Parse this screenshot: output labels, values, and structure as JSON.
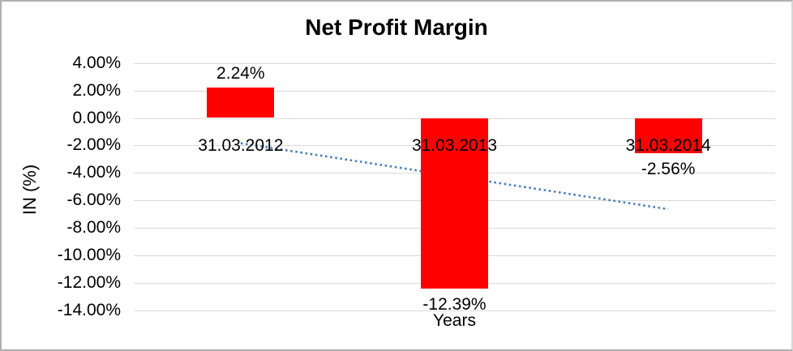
{
  "chart_data": {
    "type": "bar",
    "title": "Net Profit Margin",
    "xlabel": "Years",
    "ylabel": "IN (%)",
    "categories": [
      "31.03.2012",
      "31.03.2013",
      "31.03.2014"
    ],
    "series": [
      {
        "name": "Net Profit Margin",
        "values": [
          2.24,
          -12.39,
          -2.56
        ]
      }
    ],
    "data_labels": [
      "2.24%",
      "-12.39%",
      "-2.56%"
    ],
    "y_ticks": [
      {
        "label": "4.00%",
        "value": 4
      },
      {
        "label": "2.00%",
        "value": 2
      },
      {
        "label": "0.00%",
        "value": 0
      },
      {
        "label": "-2.00%",
        "value": -2
      },
      {
        "label": "-4.00%",
        "value": -4
      },
      {
        "label": "-6.00%",
        "value": -6
      },
      {
        "label": "-8.00%",
        "value": -8
      },
      {
        "label": "-10.00%",
        "value": -10
      },
      {
        "label": "-12.00%",
        "value": -12
      },
      {
        "label": "-14.00%",
        "value": -14
      }
    ],
    "ylim": [
      -14,
      4
    ],
    "grid": true,
    "legend": "none",
    "colors": {
      "bar": "#ff0000",
      "gridline": "#d9d9d9",
      "text": "#000000",
      "trendline": "#4a7ebb"
    },
    "trendline": {
      "type": "linear",
      "style": "dotted",
      "start_value": -1.84,
      "end_value": -6.64
    }
  }
}
